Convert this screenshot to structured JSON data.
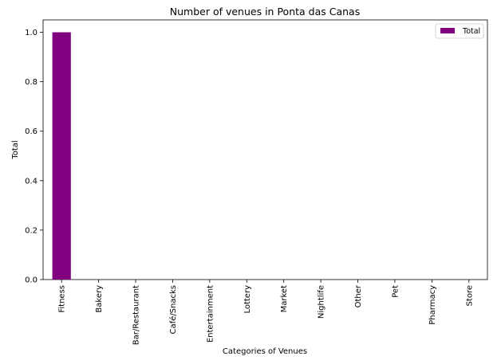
{
  "chart_data": {
    "type": "bar",
    "title": "Number of venues in Ponta das Canas",
    "xlabel": "Categories of Venues",
    "ylabel": "Total",
    "categories": [
      "Fitness",
      "Bakery",
      "Bar/Restaurant",
      "Café/Snacks",
      "Entertainment",
      "Lottery",
      "Market",
      "Nightlife",
      "Other",
      "Pet",
      "Pharmacy",
      "Store"
    ],
    "series": [
      {
        "name": "Total",
        "values": [
          1,
          0,
          0,
          0,
          0,
          0,
          0,
          0,
          0,
          0,
          0,
          0
        ],
        "color": "#800080"
      }
    ],
    "ylim": [
      0,
      1.05
    ],
    "yticks": [
      "0.0",
      "0.2",
      "0.4",
      "0.6",
      "0.8",
      "1.0"
    ],
    "legend": "top-right",
    "grid": false
  }
}
